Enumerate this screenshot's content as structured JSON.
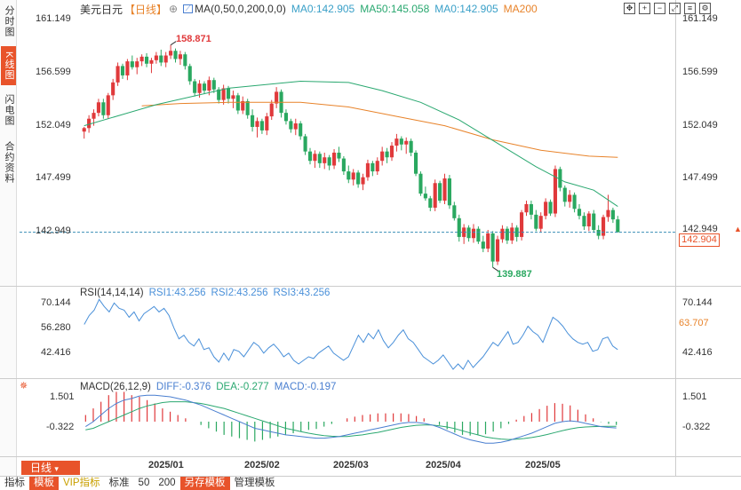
{
  "sidebar": {
    "tabs": [
      {
        "label": "分时图",
        "active": false
      },
      {
        "label": "K线图",
        "active": true
      },
      {
        "label": "闪电图",
        "active": false
      },
      {
        "label": "合约资料",
        "active": false
      }
    ]
  },
  "header": {
    "symbol": "美元日元",
    "period_tag": "【日线】",
    "ma_label": "MA(0,50,0,200,0,0)",
    "ma0": "MA0:142.905",
    "ma50": "MA50:145.058",
    "ma0b": "MA0:142.905",
    "ma200": "MA200",
    "toolbar_icons": [
      "move-icon",
      "zoom-in-icon",
      "zoom-out-icon",
      "expand-icon",
      "list-icon",
      "gear-icon"
    ]
  },
  "colors": {
    "up": "#e0393b",
    "down": "#2aa860",
    "ma50": "#2aa870",
    "ma200": "#e8832a",
    "accent": "#e8532a",
    "rsi": "#4a90d9",
    "dif": "#4a7fd0",
    "dea": "#2aa870"
  },
  "price_axis": {
    "ticks": [
      "161.149",
      "156.599",
      "152.049",
      "147.499",
      "142.949"
    ],
    "last_price": "142.904",
    "high_label": "158.871",
    "low_label": "139.887"
  },
  "rsi": {
    "title": "RSI(14,14,14)",
    "rsi1": "RSI1:43.256",
    "rsi2": "RSI2:43.256",
    "rsi3": "RSI3:43.256",
    "ticks": [
      "70.144",
      "56.280",
      "42.416"
    ],
    "current": "63.707"
  },
  "macd": {
    "title": "MACD(26,12,9)",
    "dif": "DIFF:-0.376",
    "dea": "DEA:-0.277",
    "macd": "MACD:-0.197",
    "ticks": [
      "1.501",
      "-0.322"
    ]
  },
  "time_axis": {
    "labels": [
      "2025/01",
      "2025/02",
      "2025/03",
      "2025/04",
      "2025/05"
    ]
  },
  "period_button": "日线",
  "bottom_bar": {
    "items": [
      {
        "label": "指标",
        "style": ""
      },
      {
        "label": "模板",
        "style": "hl"
      },
      {
        "label": "VIP指标",
        "style": "vip"
      },
      {
        "label": "标准",
        "style": ""
      },
      {
        "label": "50",
        "style": ""
      },
      {
        "label": "200",
        "style": ""
      },
      {
        "label": "另存模板",
        "style": "hl"
      },
      {
        "label": "管理模板",
        "style": ""
      }
    ]
  },
  "chart_data": {
    "type": "candlestick",
    "price_range": [
      139.0,
      162.2
    ],
    "candles": [
      [
        151.5,
        151.9,
        150.9,
        151.8
      ],
      [
        151.8,
        152.9,
        151.4,
        152.6
      ],
      [
        152.6,
        153.4,
        152.0,
        153.1
      ],
      [
        153.1,
        154.3,
        152.8,
        154.0
      ],
      [
        154.0,
        154.3,
        152.6,
        152.9
      ],
      [
        152.9,
        154.8,
        152.6,
        154.6
      ],
      [
        154.6,
        156.0,
        154.2,
        155.7
      ],
      [
        155.7,
        157.4,
        155.4,
        157.1
      ],
      [
        157.1,
        157.3,
        156.0,
        156.3
      ],
      [
        156.3,
        157.7,
        155.9,
        157.5
      ],
      [
        157.5,
        158.0,
        156.8,
        157.0
      ],
      [
        157.0,
        157.8,
        156.4,
        157.5
      ],
      [
        157.5,
        158.1,
        157.1,
        157.9
      ],
      [
        157.9,
        158.2,
        157.0,
        157.3
      ],
      [
        157.3,
        157.8,
        156.5,
        157.6
      ],
      [
        157.6,
        158.3,
        157.3,
        158.0
      ],
      [
        158.0,
        158.5,
        157.1,
        157.4
      ],
      [
        157.4,
        158.3,
        157.0,
        158.0
      ],
      [
        158.0,
        158.9,
        157.7,
        158.4
      ],
      [
        158.4,
        158.6,
        157.4,
        157.7
      ],
      [
        157.7,
        158.4,
        157.2,
        158.1
      ],
      [
        158.1,
        158.3,
        156.8,
        157.1
      ],
      [
        157.1,
        157.3,
        155.5,
        155.8
      ],
      [
        155.8,
        156.0,
        154.5,
        154.8
      ],
      [
        154.8,
        155.9,
        154.4,
        155.6
      ],
      [
        155.6,
        155.8,
        154.7,
        155.0
      ],
      [
        155.0,
        156.2,
        154.6,
        155.9
      ],
      [
        155.9,
        156.1,
        154.8,
        155.1
      ],
      [
        155.1,
        155.3,
        153.9,
        154.2
      ],
      [
        154.2,
        155.5,
        153.8,
        155.2
      ],
      [
        155.2,
        155.4,
        153.9,
        154.3
      ],
      [
        154.3,
        155.0,
        153.5,
        154.6
      ],
      [
        154.6,
        154.8,
        153.0,
        153.3
      ],
      [
        153.3,
        154.5,
        153.0,
        154.1
      ],
      [
        154.1,
        154.3,
        152.6,
        152.9
      ],
      [
        152.9,
        153.4,
        151.5,
        151.9
      ],
      [
        151.9,
        152.7,
        151.0,
        152.4
      ],
      [
        152.4,
        152.6,
        151.3,
        151.6
      ],
      [
        151.6,
        153.1,
        151.2,
        152.8
      ],
      [
        152.8,
        154.2,
        152.5,
        153.9
      ],
      [
        153.9,
        155.3,
        153.5,
        154.9
      ],
      [
        154.9,
        155.1,
        152.7,
        153.1
      ],
      [
        153.1,
        153.4,
        152.1,
        152.4
      ],
      [
        152.4,
        152.6,
        151.4,
        151.7
      ],
      [
        151.7,
        152.6,
        151.2,
        152.2
      ],
      [
        152.2,
        152.4,
        150.8,
        151.1
      ],
      [
        151.1,
        151.3,
        149.5,
        149.8
      ],
      [
        149.8,
        150.1,
        148.7,
        149.0
      ],
      [
        149.0,
        149.9,
        148.4,
        149.6
      ],
      [
        149.6,
        149.8,
        148.4,
        148.8
      ],
      [
        148.8,
        149.7,
        148.3,
        149.3
      ],
      [
        149.3,
        149.5,
        148.2,
        148.6
      ],
      [
        148.6,
        150.0,
        148.3,
        149.7
      ],
      [
        149.7,
        150.2,
        148.9,
        149.2
      ],
      [
        149.2,
        149.4,
        147.8,
        148.1
      ],
      [
        148.1,
        148.6,
        147.1,
        147.4
      ],
      [
        147.4,
        148.3,
        146.9,
        148.0
      ],
      [
        148.0,
        148.2,
        146.7,
        147.0
      ],
      [
        147.0,
        147.9,
        146.5,
        147.6
      ],
      [
        147.6,
        149.1,
        147.3,
        148.8
      ],
      [
        148.8,
        149.0,
        147.7,
        148.1
      ],
      [
        148.1,
        149.3,
        147.8,
        149.0
      ],
      [
        149.0,
        150.2,
        148.6,
        149.8
      ],
      [
        149.8,
        150.1,
        148.8,
        149.3
      ],
      [
        149.3,
        150.6,
        149.0,
        150.3
      ],
      [
        150.3,
        151.3,
        149.8,
        150.9
      ],
      [
        150.9,
        151.1,
        149.9,
        150.4
      ],
      [
        150.4,
        151.0,
        149.6,
        150.7
      ],
      [
        150.7,
        150.9,
        149.4,
        149.7
      ],
      [
        149.7,
        149.9,
        147.7,
        147.9
      ],
      [
        147.9,
        148.1,
        146.0,
        146.2
      ],
      [
        146.2,
        146.8,
        145.6,
        145.8
      ],
      [
        145.8,
        146.0,
        144.7,
        145.0
      ],
      [
        145.0,
        147.4,
        144.7,
        147.1
      ],
      [
        147.1,
        147.3,
        145.4,
        145.6
      ],
      [
        145.6,
        147.9,
        145.3,
        147.5
      ],
      [
        147.5,
        147.8,
        144.9,
        145.2
      ],
      [
        145.2,
        145.5,
        143.9,
        144.1
      ],
      [
        144.1,
        144.4,
        142.1,
        142.5
      ],
      [
        142.5,
        143.6,
        141.9,
        143.3
      ],
      [
        143.3,
        143.5,
        142.1,
        142.4
      ],
      [
        142.4,
        143.6,
        142.0,
        143.2
      ],
      [
        143.2,
        143.4,
        141.9,
        142.1
      ],
      [
        142.1,
        142.6,
        141.2,
        141.5
      ],
      [
        141.5,
        143.1,
        141.2,
        142.8
      ],
      [
        142.8,
        143.0,
        139.9,
        140.4
      ],
      [
        140.4,
        142.6,
        140.1,
        142.3
      ],
      [
        142.3,
        143.5,
        142.0,
        143.2
      ],
      [
        143.2,
        143.4,
        141.9,
        142.2
      ],
      [
        142.2,
        143.7,
        141.9,
        143.3
      ],
      [
        143.3,
        143.5,
        142.1,
        142.5
      ],
      [
        142.5,
        144.8,
        142.2,
        144.6
      ],
      [
        144.6,
        145.6,
        144.3,
        145.3
      ],
      [
        145.3,
        145.6,
        144.0,
        144.4
      ],
      [
        144.4,
        144.8,
        143.0,
        143.2
      ],
      [
        143.2,
        144.6,
        142.9,
        144.3
      ],
      [
        144.3,
        145.8,
        144.0,
        145.5
      ],
      [
        145.5,
        145.7,
        144.3,
        144.5
      ],
      [
        144.5,
        148.6,
        144.2,
        148.3
      ],
      [
        148.3,
        148.5,
        146.4,
        146.7
      ],
      [
        146.7,
        146.9,
        145.1,
        145.5
      ],
      [
        145.5,
        146.5,
        145.0,
        146.1
      ],
      [
        146.1,
        146.3,
        144.6,
        144.9
      ],
      [
        144.9,
        145.3,
        144.0,
        144.3
      ],
      [
        144.3,
        144.6,
        143.1,
        143.4
      ],
      [
        143.4,
        144.7,
        143.0,
        144.5
      ],
      [
        144.5,
        144.8,
        142.9,
        143.1
      ],
      [
        143.1,
        143.5,
        142.3,
        142.6
      ],
      [
        142.6,
        144.4,
        142.3,
        144.2
      ],
      [
        144.2,
        146.1,
        143.8,
        144.8
      ],
      [
        144.8,
        145.0,
        143.7,
        144.0
      ],
      [
        144.0,
        144.3,
        142.9,
        142.9
      ]
    ],
    "ma50": [
      [
        0,
        152.0
      ],
      [
        15,
        153.8
      ],
      [
        30,
        155.2
      ],
      [
        45,
        155.8
      ],
      [
        55,
        155.7
      ],
      [
        62,
        155.0
      ],
      [
        70,
        154.0
      ],
      [
        78,
        152.5
      ],
      [
        86,
        150.5
      ],
      [
        94,
        148.5
      ],
      [
        100,
        147.2
      ],
      [
        106,
        146.5
      ],
      [
        111,
        145.1
      ]
    ],
    "ma200": [
      [
        12,
        153.7
      ],
      [
        20,
        153.9
      ],
      [
        30,
        154.0
      ],
      [
        45,
        154.0
      ],
      [
        55,
        153.6
      ],
      [
        65,
        152.8
      ],
      [
        75,
        152.0
      ],
      [
        85,
        150.8
      ],
      [
        95,
        149.9
      ],
      [
        105,
        149.4
      ],
      [
        111,
        149.3
      ]
    ],
    "rsi_range": [
      30,
      80
    ],
    "rsi_values": [
      58,
      63,
      66,
      72,
      68,
      65,
      70,
      67,
      66,
      62,
      65,
      60,
      64,
      66,
      68,
      65,
      67,
      63,
      56,
      50,
      52,
      48,
      46,
      50,
      44,
      45,
      40,
      37,
      42,
      38,
      44,
      43,
      40,
      44,
      48,
      46,
      42,
      45,
      47,
      44,
      40,
      42,
      38,
      36,
      38,
      40,
      39,
      42,
      44,
      46,
      42,
      40,
      38,
      40,
      46,
      52,
      48,
      53,
      50,
      55,
      49,
      45,
      48,
      52,
      55,
      50,
      48,
      44,
      40,
      38,
      36,
      38,
      41,
      37,
      33,
      36,
      33,
      38,
      34,
      37,
      40,
      44,
      48,
      46,
      50,
      54,
      47,
      48,
      52,
      57,
      54,
      52,
      48,
      55,
      62,
      60,
      57,
      53,
      50,
      48,
      47,
      48,
      43,
      44,
      50,
      51,
      46,
      44
    ],
    "macd_range": [
      -1.5,
      2.3
    ],
    "dif": [
      -0.3,
      0.0,
      0.4,
      0.8,
      1.1,
      1.3,
      1.4,
      1.55,
      1.6,
      1.6,
      1.55,
      1.5,
      1.4,
      1.3,
      1.15,
      1.0,
      0.8,
      0.6,
      0.4,
      0.2,
      0.0,
      -0.2,
      -0.4,
      -0.5,
      -0.6,
      -0.7,
      -0.8,
      -0.85,
      -0.9,
      -0.95,
      -1.0,
      -1.0,
      -0.95,
      -0.9,
      -0.8,
      -0.7,
      -0.6,
      -0.5,
      -0.4,
      -0.3,
      -0.2,
      -0.1,
      -0.05,
      -0.05,
      -0.1,
      -0.2,
      -0.35,
      -0.55,
      -0.75,
      -0.95,
      -1.1,
      -1.2,
      -1.3,
      -1.3,
      -1.25,
      -1.15,
      -1.0,
      -0.85,
      -0.7,
      -0.5,
      -0.3,
      -0.1,
      0.0,
      0.05,
      0.0,
      -0.1,
      -0.2,
      -0.3,
      -0.35,
      -0.38
    ],
    "dea": [
      -0.5,
      -0.4,
      -0.2,
      0.0,
      0.2,
      0.4,
      0.6,
      0.8,
      0.95,
      1.05,
      1.15,
      1.2,
      1.2,
      1.2,
      1.15,
      1.1,
      1.0,
      0.9,
      0.8,
      0.65,
      0.5,
      0.35,
      0.2,
      0.05,
      -0.1,
      -0.25,
      -0.4,
      -0.5,
      -0.6,
      -0.7,
      -0.78,
      -0.85,
      -0.88,
      -0.9,
      -0.9,
      -0.85,
      -0.8,
      -0.72,
      -0.65,
      -0.55,
      -0.45,
      -0.35,
      -0.28,
      -0.22,
      -0.2,
      -0.2,
      -0.25,
      -0.32,
      -0.42,
      -0.55,
      -0.68,
      -0.8,
      -0.92,
      -1.0,
      -1.05,
      -1.08,
      -1.06,
      -1.02,
      -0.96,
      -0.88,
      -0.78,
      -0.66,
      -0.54,
      -0.44,
      -0.36,
      -0.32,
      -0.3,
      -0.29,
      -0.28,
      -0.28
    ]
  }
}
